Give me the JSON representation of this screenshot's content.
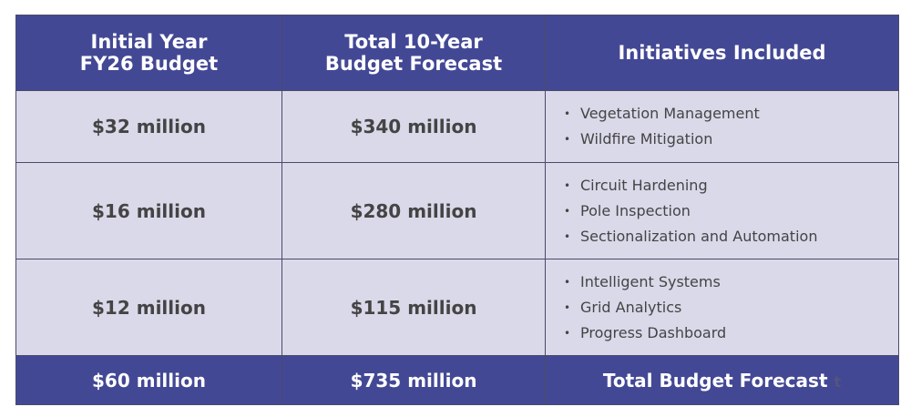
{
  "table": {
    "headers": [
      "Initial Year\nFY26 Budget",
      "Total 10-Year\nBudget Forecast",
      "Initiatives Included"
    ],
    "header_lines": [
      [
        "Initial Year",
        "FY26 Budget"
      ],
      [
        "Total 10-Year",
        "Budget Forecast"
      ],
      [
        "Initiatives Included"
      ]
    ],
    "rows": [
      {
        "initial": "$32 million",
        "total": "$340 million",
        "initiatives": [
          "Vegetation Management",
          "Wildfire Mitigation"
        ]
      },
      {
        "initial": "$16 million",
        "total": "$280 million",
        "initiatives": [
          "Circuit Hardening",
          "Pole Inspection",
          "Sectionalization and Automation"
        ]
      },
      {
        "initial": "$12 million",
        "total": "$115 million",
        "initiatives": [
          "Intelligent Systems",
          "Grid Analytics",
          "Progress Dashboard"
        ]
      }
    ],
    "footer": {
      "initial": "$60 million",
      "total": "$735 million",
      "label": "Total Budget Forecast",
      "note": "t"
    }
  },
  "colors": {
    "header": "#434895",
    "row": "#d9d9ea",
    "text": "#444444"
  }
}
